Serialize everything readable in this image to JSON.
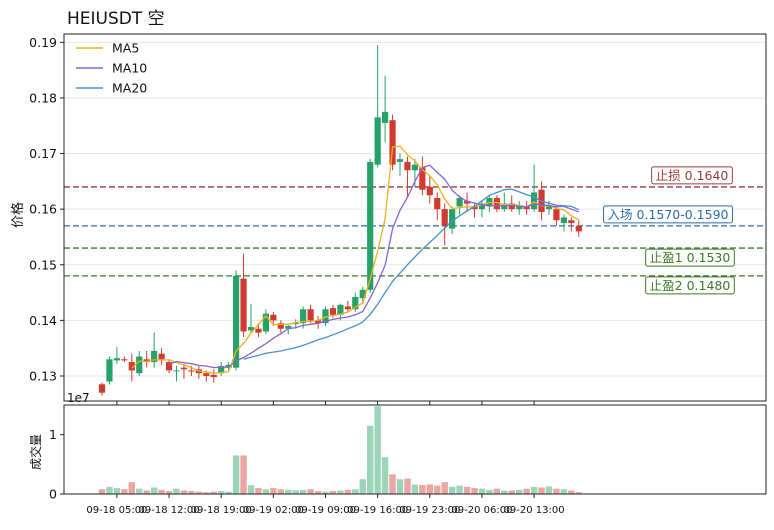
{
  "chart_data": {
    "type": "candlestick",
    "title": "HEIUSDT  空",
    "price_panel": {
      "ylabel": "价格",
      "ylim": [
        0.1255,
        0.1915
      ],
      "yticks": [
        0.13,
        0.14,
        0.15,
        0.16,
        0.17,
        0.18,
        0.19
      ],
      "ytick_labels": [
        "0.13",
        "0.14",
        "0.15",
        "0.16",
        "0.17",
        "0.18",
        "0.19"
      ],
      "legend": {
        "placement": "top-left",
        "entries": [
          "MA5",
          "MA10",
          "MA20"
        ]
      },
      "colors": {
        "up": "#26a269",
        "down": "#d13a30",
        "ma5": "#f0b020",
        "ma10": "#8a63d2",
        "ma20": "#4a90d0"
      },
      "candles": [
        [
          0.1285,
          0.1288,
          0.1265,
          0.127
        ],
        [
          0.129,
          0.1335,
          0.1285,
          0.133
        ],
        [
          0.1328,
          0.1352,
          0.1322,
          0.1332
        ],
        [
          0.133,
          0.1335,
          0.1325,
          0.1328
        ],
        [
          0.1325,
          0.134,
          0.129,
          0.131
        ],
        [
          0.1305,
          0.1345,
          0.13,
          0.1335
        ],
        [
          0.133,
          0.1345,
          0.1315,
          0.1325
        ],
        [
          0.1325,
          0.1378,
          0.1315,
          0.1345
        ],
        [
          0.134,
          0.135,
          0.132,
          0.133
        ],
        [
          0.1325,
          0.133,
          0.1305,
          0.131
        ],
        [
          0.131,
          0.1318,
          0.129,
          0.131
        ],
        [
          0.1315,
          0.1322,
          0.1295,
          0.1312
        ],
        [
          0.131,
          0.1318,
          0.13,
          0.1308
        ],
        [
          0.1312,
          0.1318,
          0.1295,
          0.1305
        ],
        [
          0.1305,
          0.131,
          0.129,
          0.13
        ],
        [
          0.1302,
          0.1312,
          0.1288,
          0.1298
        ],
        [
          0.1305,
          0.1325,
          0.13,
          0.1318
        ],
        [
          0.1315,
          0.1325,
          0.131,
          0.132
        ],
        [
          0.1315,
          0.149,
          0.131,
          0.148
        ],
        [
          0.1475,
          0.152,
          0.137,
          0.138
        ],
        [
          0.1382,
          0.143,
          0.1375,
          0.1388
        ],
        [
          0.1385,
          0.1395,
          0.137,
          0.1378
        ],
        [
          0.138,
          0.142,
          0.1375,
          0.1412
        ],
        [
          0.141,
          0.1415,
          0.139,
          0.14
        ],
        [
          0.1395,
          0.14,
          0.1378,
          0.1385
        ],
        [
          0.1385,
          0.1392,
          0.1375,
          0.139
        ],
        [
          0.1395,
          0.1402,
          0.1385,
          0.1395
        ],
        [
          0.1395,
          0.1425,
          0.1385,
          0.142
        ],
        [
          0.142,
          0.1428,
          0.1395,
          0.14
        ],
        [
          0.14,
          0.1408,
          0.1385,
          0.1395
        ],
        [
          0.1395,
          0.1425,
          0.139,
          0.142
        ],
        [
          0.1422,
          0.1428,
          0.1405,
          0.141
        ],
        [
          0.141,
          0.143,
          0.14,
          0.1428
        ],
        [
          0.1425,
          0.1435,
          0.1415,
          0.142
        ],
        [
          0.142,
          0.145,
          0.1415,
          0.1442
        ],
        [
          0.144,
          0.146,
          0.143,
          0.1455
        ],
        [
          0.1455,
          0.169,
          0.145,
          0.1685
        ],
        [
          0.168,
          0.1895,
          0.1675,
          0.1765
        ],
        [
          0.1755,
          0.184,
          0.172,
          0.1775
        ],
        [
          0.176,
          0.177,
          0.167,
          0.168
        ],
        [
          0.1685,
          0.17,
          0.166,
          0.169
        ],
        [
          0.1685,
          0.1695,
          0.162,
          0.167
        ],
        [
          0.167,
          0.169,
          0.164,
          0.168
        ],
        [
          0.1675,
          0.1695,
          0.1625,
          0.1635
        ],
        [
          0.164,
          0.166,
          0.161,
          0.1625
        ],
        [
          0.162,
          0.163,
          0.158,
          0.16
        ],
        [
          0.16,
          0.161,
          0.1535,
          0.157
        ],
        [
          0.1565,
          0.1605,
          0.1555,
          0.16
        ],
        [
          0.1605,
          0.1625,
          0.159,
          0.162
        ],
        [
          0.1615,
          0.163,
          0.1595,
          0.161
        ],
        [
          0.1605,
          0.161,
          0.1585,
          0.16
        ],
        [
          0.16,
          0.1615,
          0.1585,
          0.161
        ],
        [
          0.1605,
          0.1625,
          0.1595,
          0.162
        ],
        [
          0.162,
          0.1625,
          0.1595,
          0.16
        ],
        [
          0.16,
          0.163,
          0.1595,
          0.161
        ],
        [
          0.161,
          0.1625,
          0.1595,
          0.16
        ],
        [
          0.16,
          0.1615,
          0.159,
          0.1605
        ],
        [
          0.1605,
          0.1615,
          0.159,
          0.16
        ],
        [
          0.16,
          0.168,
          0.1595,
          0.163
        ],
        [
          0.1635,
          0.165,
          0.158,
          0.1595
        ],
        [
          0.16,
          0.1615,
          0.159,
          0.1605
        ],
        [
          0.16,
          0.1605,
          0.157,
          0.158
        ],
        [
          0.1575,
          0.159,
          0.156,
          0.1585
        ],
        [
          0.158,
          0.1585,
          0.156,
          0.1575
        ],
        [
          0.157,
          0.158,
          0.155,
          0.156
        ]
      ],
      "ma5": [
        null,
        null,
        null,
        null,
        0.1314,
        0.1327,
        0.1326,
        0.1329,
        0.1329,
        0.1329,
        0.1324,
        0.132,
        0.1315,
        0.1309,
        0.1307,
        0.1305,
        0.1306,
        0.1308,
        0.1345,
        0.1359,
        0.1377,
        0.1393,
        0.1408,
        0.1392,
        0.1393,
        0.1393,
        0.1396,
        0.1398,
        0.1398,
        0.14,
        0.1406,
        0.1409,
        0.1411,
        0.1415,
        0.1424,
        0.1431,
        0.1474,
        0.1525,
        0.1583,
        0.1712,
        0.1713,
        0.1698,
        0.1687,
        0.1671,
        0.166,
        0.1644,
        0.1618,
        0.1601,
        0.1603,
        0.1604,
        0.1604,
        0.1608,
        0.1612,
        0.1612,
        0.1608,
        0.1608,
        0.1607,
        0.1604,
        0.1613,
        0.1606,
        0.1607,
        0.1601,
        0.1599,
        0.1588,
        0.1581
      ],
      "ma10": [
        null,
        null,
        null,
        null,
        null,
        null,
        null,
        null,
        null,
        0.1321,
        0.1326,
        0.1324,
        0.1322,
        0.1319,
        0.1318,
        0.1315,
        0.1316,
        0.1316,
        0.1327,
        0.1333,
        0.1341,
        0.135,
        0.1358,
        0.1368,
        0.1376,
        0.1385,
        0.1387,
        0.1391,
        0.1393,
        0.1395,
        0.1398,
        0.1402,
        0.1404,
        0.1406,
        0.141,
        0.1416,
        0.144,
        0.1468,
        0.1499,
        0.1565,
        0.1598,
        0.1621,
        0.165,
        0.1675,
        0.1679,
        0.1666,
        0.1654,
        0.1634,
        0.1622,
        0.1614,
        0.1611,
        0.1608,
        0.1606,
        0.1606,
        0.1606,
        0.1607,
        0.1605,
        0.1604,
        0.161,
        0.1607,
        0.1607,
        0.1604,
        0.1605,
        0.16,
        0.1595
      ],
      "ma20": [
        null,
        null,
        null,
        null,
        null,
        null,
        null,
        null,
        null,
        null,
        null,
        null,
        null,
        null,
        null,
        null,
        null,
        null,
        null,
        0.133,
        0.1334,
        0.1337,
        0.1341,
        0.1343,
        0.1345,
        0.1348,
        0.1351,
        0.1355,
        0.136,
        0.1365,
        0.1369,
        0.1374,
        0.1379,
        0.1385,
        0.139,
        0.1397,
        0.1411,
        0.1429,
        0.145,
        0.147,
        0.1485,
        0.15,
        0.1514,
        0.1528,
        0.154,
        0.1553,
        0.1566,
        0.1579,
        0.1588,
        0.1597,
        0.1605,
        0.1615,
        0.1625,
        0.163,
        0.1635,
        0.1636,
        0.1631,
        0.1626,
        0.1622,
        0.1614,
        0.1611,
        0.1607,
        0.1606,
        0.1605,
        0.1599
      ]
    },
    "levels": [
      {
        "label": "止损 0.1640",
        "value": 0.164,
        "color": "#9b3b3b"
      },
      {
        "label": "入场 0.1570-0.1590",
        "value": 0.157,
        "color": "#2f6ea8"
      },
      {
        "label": "止盈1 0.1530",
        "value": 0.153,
        "color": "#3d7a2a"
      },
      {
        "label": "止盈2 0.1480",
        "value": 0.148,
        "color": "#3d7a2a"
      }
    ],
    "volume_panel": {
      "ylabel": "成交量",
      "offset_label": "1e7",
      "ylim": [
        0,
        1.5
      ],
      "yticks": [
        0,
        1
      ],
      "ytick_labels": [
        "0",
        "1"
      ],
      "values": [
        0.08,
        0.12,
        0.1,
        0.08,
        0.2,
        0.09,
        0.06,
        0.11,
        0.07,
        0.05,
        0.09,
        0.06,
        0.05,
        0.04,
        0.03,
        0.04,
        0.05,
        0.04,
        0.65,
        0.65,
        0.15,
        0.1,
        0.08,
        0.1,
        0.08,
        0.07,
        0.06,
        0.07,
        0.08,
        0.05,
        0.04,
        0.05,
        0.06,
        0.07,
        0.08,
        0.25,
        1.15,
        1.48,
        0.62,
        0.33,
        0.25,
        0.26,
        0.16,
        0.15,
        0.16,
        0.14,
        0.2,
        0.12,
        0.14,
        0.12,
        0.1,
        0.09,
        0.07,
        0.09,
        0.06,
        0.06,
        0.07,
        0.09,
        0.12,
        0.11,
        0.13,
        0.09,
        0.08,
        0.06,
        0.03
      ],
      "xtick_labels": [
        "09-18 05:00",
        "09-18 12:00",
        "09-18 19:00",
        "09-19 02:00",
        "09-19 09:00",
        "09-19 16:00",
        "09-19 23:00",
        "09-20 06:00",
        "09-20 13:00"
      ],
      "xtick_index": [
        2,
        9,
        16,
        23,
        30,
        37,
        44,
        51,
        58
      ]
    }
  }
}
